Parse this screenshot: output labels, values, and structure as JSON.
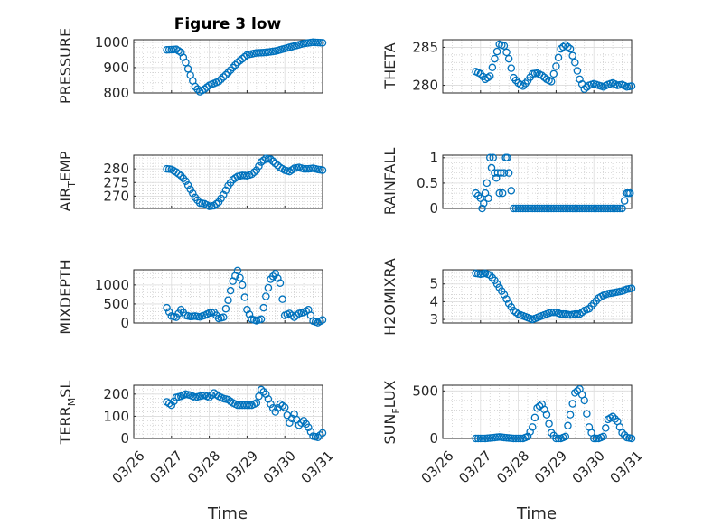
{
  "figure": {
    "title": "Figure 3 low",
    "date_ticks": [
      "03/26",
      "03/27",
      "03/28",
      "03/29",
      "03/30",
      "03/31"
    ],
    "xlabel": "Time",
    "marker_color": "#0072BD"
  },
  "chart_data": [
    {
      "type": "scatter",
      "ylabel": "PRESSURE",
      "yticks": [
        800,
        900,
        1000
      ],
      "ylim": [
        800,
        1010
      ],
      "x": [
        "03/26 21:00",
        "03/27 03:00",
        "03/27 06:00",
        "03/27 09:00",
        "03/27 12:00",
        "03/27 15:00",
        "03/27 18:00",
        "03/27 21:00",
        "03/28 00:00",
        "03/28 06:00",
        "03/28 12:00",
        "03/28 18:00",
        "03/29 00:00",
        "03/29 06:00",
        "03/29 12:00",
        "03/29 18:00",
        "03/30 00:00",
        "03/30 06:00",
        "03/30 12:00",
        "03/30 18:00",
        "03/31 00:00"
      ],
      "y": [
        970,
        972,
        960,
        920,
        870,
        825,
        805,
        815,
        830,
        845,
        880,
        920,
        950,
        958,
        960,
        965,
        975,
        985,
        995,
        1000,
        998
      ]
    },
    {
      "type": "scatter",
      "ylabel": "THETA",
      "yticks": [
        280,
        285
      ],
      "ylim": [
        279,
        286
      ],
      "x": [
        "03/26 21:00",
        "03/27 00:00",
        "03/27 03:00",
        "03/27 06:00",
        "03/27 09:00",
        "03/27 12:00",
        "03/27 15:00",
        "03/27 18:00",
        "03/27 21:00",
        "03/28 00:00",
        "03/28 03:00",
        "03/28 06:00",
        "03/28 09:00",
        "03/28 12:00",
        "03/28 15:00",
        "03/28 18:00",
        "03/28 21:00",
        "03/29 00:00",
        "03/29 03:00",
        "03/29 06:00",
        "03/29 09:00",
        "03/29 12:00",
        "03/29 15:00",
        "03/29 18:00",
        "03/29 21:00",
        "03/30 00:00",
        "03/30 03:00",
        "03/30 06:00",
        "03/30 09:00",
        "03/30 12:00",
        "03/30 15:00",
        "03/30 18:00",
        "03/30 21:00",
        "03/31 00:00"
      ],
      "y": [
        281.8,
        281.5,
        280.8,
        281.2,
        283.5,
        285.4,
        285.2,
        283.5,
        281.0,
        280.3,
        279.9,
        280.6,
        281.5,
        281.6,
        281.3,
        280.8,
        280.5,
        282.5,
        284.8,
        285.3,
        284.8,
        283.0,
        280.8,
        279.5,
        280.0,
        280.2,
        280.0,
        279.8,
        280.1,
        280.3,
        280.0,
        280.1,
        279.8,
        279.9
      ]
    },
    {
      "type": "scatter",
      "ylabel": "AIR_TEMP",
      "yticks": [
        270,
        275,
        280
      ],
      "ylim": [
        265.5,
        285
      ],
      "x": [
        "03/26 21:00",
        "03/27 00:00",
        "03/27 03:00",
        "03/27 06:00",
        "03/27 09:00",
        "03/27 12:00",
        "03/27 15:00",
        "03/27 18:00",
        "03/27 21:00",
        "03/28 00:00",
        "03/28 03:00",
        "03/28 06:00",
        "03/28 09:00",
        "03/28 12:00",
        "03/28 15:00",
        "03/28 18:00",
        "03/28 21:00",
        "03/29 00:00",
        "03/29 03:00",
        "03/29 06:00",
        "03/29 09:00",
        "03/29 12:00",
        "03/29 15:00",
        "03/29 18:00",
        "03/29 21:00",
        "03/30 00:00",
        "03/30 03:00",
        "03/30 06:00",
        "03/30 09:00",
        "03/30 12:00",
        "03/30 15:00",
        "03/30 18:00",
        "03/30 21:00",
        "03/31 00:00"
      ],
      "y": [
        280,
        279.8,
        278.8,
        277.5,
        275.5,
        272.5,
        269.5,
        267.5,
        267.2,
        266.3,
        266.5,
        267.8,
        270.5,
        273.8,
        276.0,
        277.2,
        277.6,
        277.5,
        278.0,
        279.5,
        282.5,
        283.8,
        283.5,
        282.0,
        280.5,
        279.5,
        279.0,
        280.2,
        280.5,
        280.0,
        280.0,
        280.2,
        279.8,
        279.5
      ]
    },
    {
      "type": "scatter",
      "ylabel": "RAINFALL",
      "yticks": [
        0,
        0.5,
        1
      ],
      "ylim": [
        0,
        1.05
      ],
      "x": [
        "03/26 21:00",
        "03/27 00:00",
        "03/27 01:00",
        "03/27 02:00",
        "03/27 03:00",
        "03/27 04:00",
        "03/27 05:00",
        "03/27 06:00",
        "03/27 07:00",
        "03/27 08:00",
        "03/27 09:00",
        "03/27 10:00",
        "03/27 11:00",
        "03/27 12:00",
        "03/27 13:00",
        "03/27 14:00",
        "03/27 15:00",
        "03/27 16:00",
        "03/27 17:00",
        "03/27 18:00",
        "03/27 21:00",
        "03/28 00:00",
        "03/28 06:00",
        "03/28 12:00",
        "03/28 18:00",
        "03/29 00:00",
        "03/29 06:00",
        "03/29 12:00",
        "03/29 18:00",
        "03/30 00:00",
        "03/30 06:00",
        "03/30 12:00",
        "03/30 18:00",
        "03/30 21:00",
        "03/30 22:00",
        "03/30 23:00"
      ],
      "y": [
        0.3,
        0.2,
        0,
        0.1,
        0.3,
        0.5,
        0.2,
        1.0,
        0.8,
        1.0,
        0.7,
        0.6,
        0.7,
        0.3,
        0.7,
        0.3,
        0.7,
        1.0,
        1.0,
        0.7,
        0,
        0,
        0,
        0,
        0,
        0,
        0,
        0,
        0,
        0,
        0,
        0,
        0,
        0.3,
        0.3,
        0.3
      ]
    },
    {
      "type": "scatter",
      "ylabel": "MIXDEPTH",
      "yticks": [
        0,
        500,
        1000
      ],
      "ylim": [
        0,
        1400
      ],
      "x": [
        "03/26 21:00",
        "03/27 00:00",
        "03/27 03:00",
        "03/27 06:00",
        "03/27 09:00",
        "03/27 12:00",
        "03/27 15:00",
        "03/27 18:00",
        "03/27 21:00",
        "03/28 00:00",
        "03/28 03:00",
        "03/28 06:00",
        "03/28 09:00",
        "03/28 12:00",
        "03/28 15:00",
        "03/28 18:00",
        "03/28 21:00",
        "03/29 00:00",
        "03/29 03:00",
        "03/29 06:00",
        "03/29 09:00",
        "03/29 12:00",
        "03/29 15:00",
        "03/29 18:00",
        "03/29 21:00",
        "03/30 00:00",
        "03/30 03:00",
        "03/30 06:00",
        "03/30 09:00",
        "03/30 12:00",
        "03/30 15:00",
        "03/30 18:00",
        "03/30 21:00",
        "03/31 00:00"
      ],
      "y": [
        400,
        180,
        150,
        350,
        200,
        170,
        180,
        160,
        200,
        260,
        280,
        120,
        150,
        600,
        1100,
        1380,
        1000,
        350,
        100,
        60,
        100,
        700,
        1150,
        1300,
        1050,
        200,
        250,
        150,
        250,
        280,
        350,
        50,
        10,
        80
      ]
    },
    {
      "type": "scatter",
      "ylabel": "H2OMIXRA",
      "yticks": [
        3,
        4,
        5
      ],
      "ylim": [
        2.8,
        5.8
      ],
      "x": [
        "03/26 21:00",
        "03/27 00:00",
        "03/27 03:00",
        "03/27 06:00",
        "03/27 09:00",
        "03/27 12:00",
        "03/27 15:00",
        "03/27 18:00",
        "03/27 21:00",
        "03/28 00:00",
        "03/28 03:00",
        "03/28 06:00",
        "03/28 09:00",
        "03/28 12:00",
        "03/28 15:00",
        "03/28 18:00",
        "03/28 21:00",
        "03/29 00:00",
        "03/29 03:00",
        "03/29 06:00",
        "03/29 09:00",
        "03/29 12:00",
        "03/29 15:00",
        "03/29 18:00",
        "03/29 21:00",
        "03/30 00:00",
        "03/30 03:00",
        "03/30 06:00",
        "03/30 09:00",
        "03/30 12:00",
        "03/30 15:00",
        "03/30 18:00",
        "03/30 21:00",
        "03/31 00:00"
      ],
      "y": [
        5.6,
        5.55,
        5.6,
        5.5,
        5.2,
        4.8,
        4.4,
        3.9,
        3.5,
        3.3,
        3.2,
        3.1,
        3.0,
        3.1,
        3.2,
        3.3,
        3.4,
        3.4,
        3.3,
        3.3,
        3.25,
        3.3,
        3.3,
        3.5,
        3.6,
        3.9,
        4.2,
        4.35,
        4.45,
        4.5,
        4.55,
        4.6,
        4.7,
        4.75
      ]
    },
    {
      "type": "scatter",
      "ylabel": "TERR_MSL",
      "yticks": [
        0,
        100,
        200
      ],
      "ylim": [
        0,
        240
      ],
      "x": [
        "03/26 21:00",
        "03/27 00:00",
        "03/27 03:00",
        "03/27 06:00",
        "03/27 09:00",
        "03/27 12:00",
        "03/27 15:00",
        "03/27 18:00",
        "03/27 21:00",
        "03/28 00:00",
        "03/28 03:00",
        "03/28 06:00",
        "03/28 09:00",
        "03/28 12:00",
        "03/28 15:00",
        "03/28 18:00",
        "03/28 21:00",
        "03/29 00:00",
        "03/29 03:00",
        "03/29 06:00",
        "03/29 09:00",
        "03/29 12:00",
        "03/29 15:00",
        "03/29 18:00",
        "03/29 21:00",
        "03/30 00:00",
        "03/30 03:00",
        "03/30 06:00",
        "03/30 09:00",
        "03/30 12:00",
        "03/30 15:00",
        "03/30 18:00",
        "03/30 21:00",
        "03/31 00:00"
      ],
      "y": [
        165,
        150,
        185,
        190,
        200,
        195,
        185,
        190,
        195,
        185,
        205,
        190,
        180,
        175,
        160,
        150,
        150,
        150,
        150,
        160,
        220,
        200,
        155,
        120,
        155,
        140,
        70,
        110,
        60,
        80,
        50,
        10,
        5,
        25
      ]
    },
    {
      "type": "scatter",
      "ylabel": "SUN_FLUX",
      "yticks": [
        0,
        500
      ],
      "ylim": [
        0,
        560
      ],
      "x": [
        "03/26 21:00",
        "03/27 00:00",
        "03/27 03:00",
        "03/27 06:00",
        "03/27 09:00",
        "03/27 12:00",
        "03/27 15:00",
        "03/27 18:00",
        "03/27 21:00",
        "03/28 00:00",
        "03/28 03:00",
        "03/28 06:00",
        "03/28 09:00",
        "03/28 12:00",
        "03/28 15:00",
        "03/28 18:00",
        "03/28 21:00",
        "03/29 00:00",
        "03/29 03:00",
        "03/29 06:00",
        "03/29 09:00",
        "03/29 12:00",
        "03/29 15:00",
        "03/29 18:00",
        "03/29 21:00",
        "03/30 00:00",
        "03/30 03:00",
        "03/30 06:00",
        "03/30 09:00",
        "03/30 12:00",
        "03/30 15:00",
        "03/30 18:00",
        "03/30 21:00",
        "03/31 00:00"
      ],
      "y": [
        0,
        0,
        0,
        5,
        10,
        15,
        10,
        5,
        0,
        0,
        0,
        20,
        120,
        320,
        360,
        250,
        60,
        0,
        0,
        20,
        250,
        480,
        520,
        400,
        120,
        0,
        0,
        20,
        200,
        230,
        180,
        60,
        10,
        0
      ]
    }
  ]
}
